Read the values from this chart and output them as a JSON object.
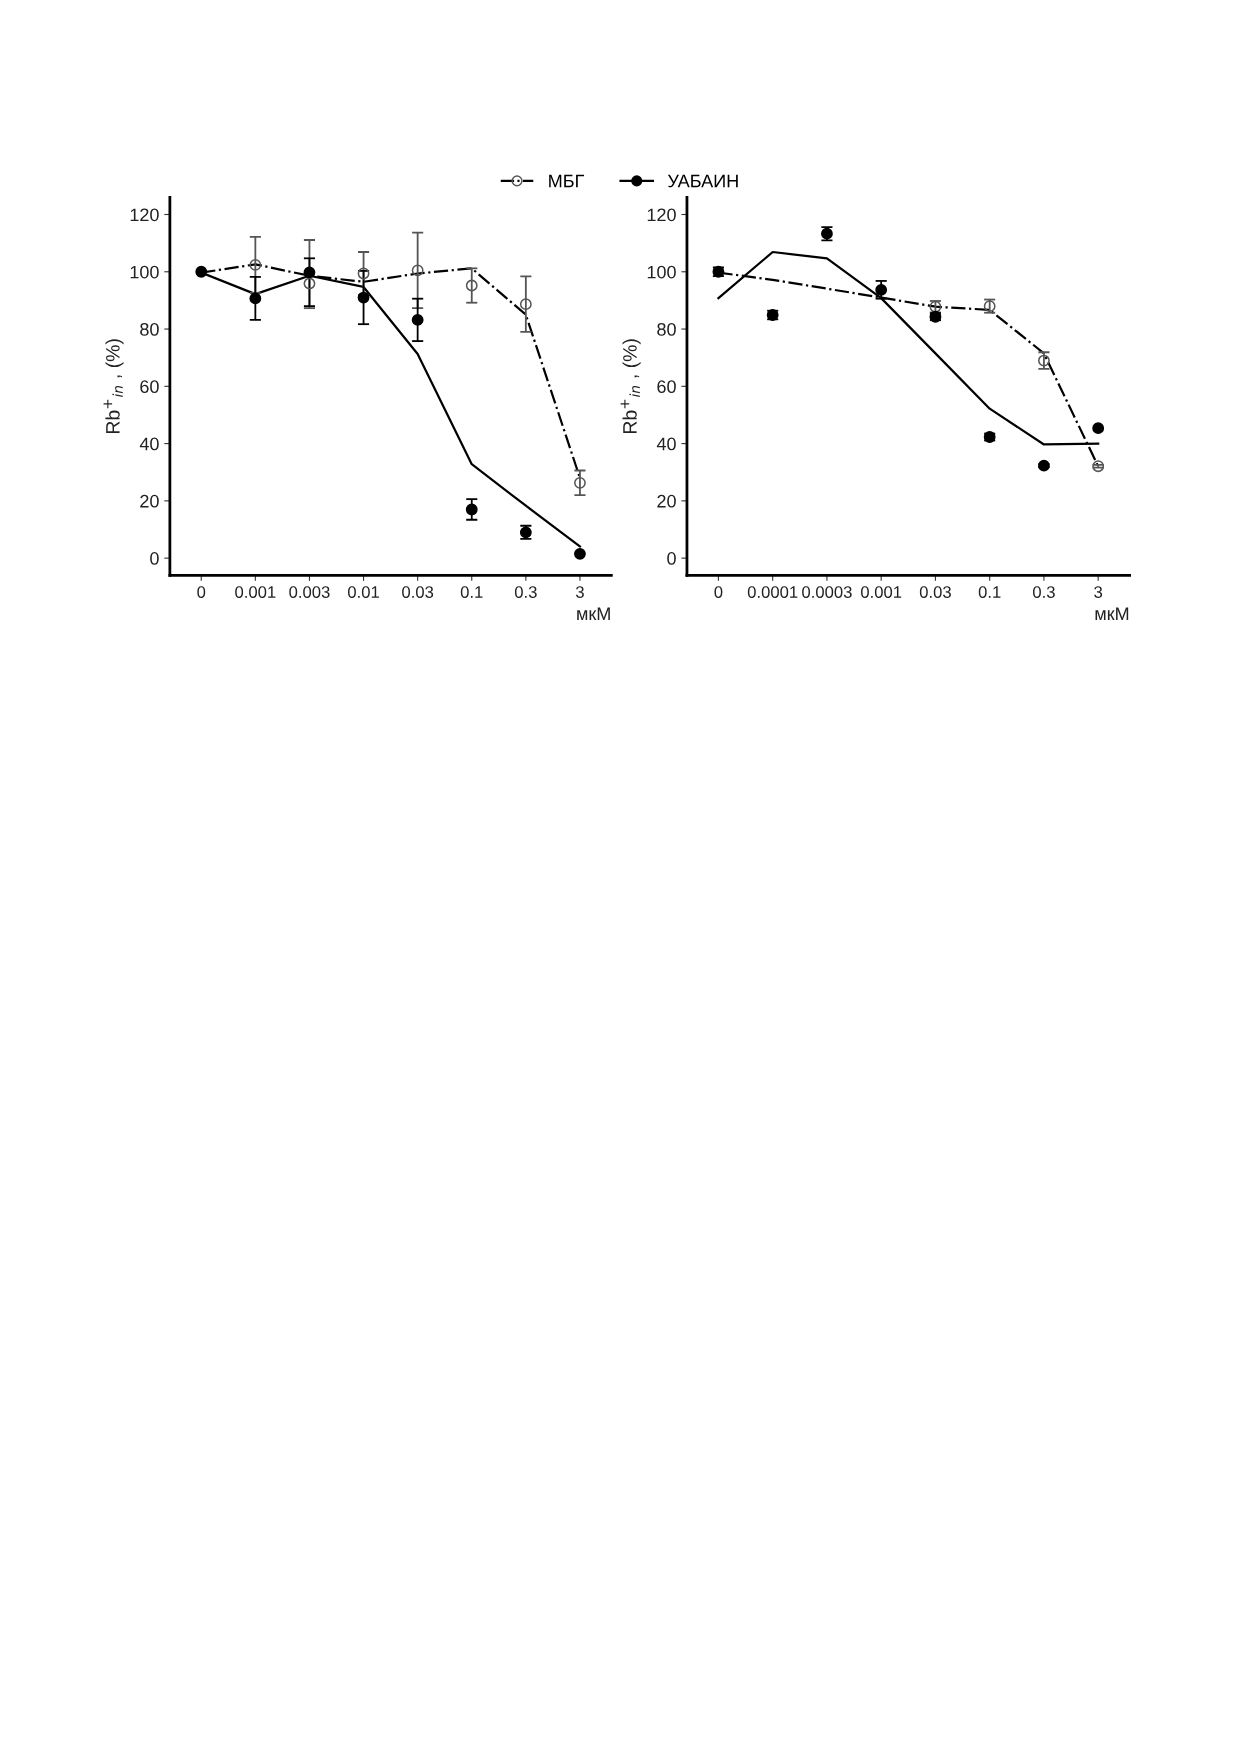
{
  "chart_data": [
    {
      "type": "scatter",
      "categories": [
        "0",
        "0.001",
        "0.003",
        "0.01",
        "0.03",
        "0.1",
        "0.3",
        "3"
      ],
      "xlabel": "мкМ",
      "ylabel": "Rb$^{+}$$_{in}$ , (%)",
      "ylim": [
        -6,
        126
      ],
      "yticks": [
        0,
        20,
        40,
        60,
        80,
        100,
        120
      ],
      "grid": false,
      "legend": "top",
      "series": [
        {
          "type": "line",
          "color": "#000000",
          "line_style": "dashdot",
          "values": [
            99.7,
            102.6,
            98.6,
            96.5,
            99.4,
            101.2,
            85.0,
            28.0
          ]
        },
        {
          "type": "line",
          "color": "#000000",
          "line_style": "solid",
          "values": [
            99.7,
            92.2,
            98.6,
            94.7,
            71.3,
            32.8,
            18.3,
            4.1
          ]
        },
        {
          "name": "МБГ",
          "color": "#555555",
          "marker": "circle-open",
          "values": [
            null,
            102.4,
            95.9,
            99.4,
            100.5,
            95.2,
            88.7,
            26.3
          ],
          "errors": [
            null,
            9.8,
            [
              87.3,
              111.1
            ],
            7.5,
            13.2,
            6,
            9.7,
            4.3
          ]
        },
        {
          "name": "УАБАИН",
          "color": "#000000",
          "marker": "circle",
          "values": [
            100,
            90.7,
            99.8,
            91.0,
            83.2,
            17.0,
            9.0,
            1.5
          ],
          "errors": [
            null,
            7.5,
            [
              88,
              104.7
            ],
            9.3,
            7.4,
            3.6,
            2.3,
            null
          ]
        }
      ]
    },
    {
      "type": "scatter",
      "categories": [
        "0",
        "0.0001",
        "0.0003",
        "0.001",
        "0.03",
        "0.1",
        "0.3",
        "3"
      ],
      "xlabel": "мкМ",
      "ylabel": "Rb$^{+}$$_{in}$ , (%)",
      "ylim": [
        -6,
        126
      ],
      "yticks": [
        0,
        20,
        40,
        60,
        80,
        100,
        120
      ],
      "grid": false,
      "legend": "top",
      "series": [
        {
          "type": "line",
          "color": "#000000",
          "line_style": "dashdot",
          "values": [
            99.7,
            97.2,
            94.1,
            91.0,
            87.8,
            86.7,
            71.5,
            32.1
          ]
        },
        {
          "type": "line",
          "color": "#000000",
          "line_style": "solid",
          "values": [
            90.8,
            106.9,
            104.7,
            90.8,
            71.5,
            52.2,
            39.7,
            40.0
          ]
        },
        {
          "name": "МБГ",
          "color": "#555555",
          "marker": "circle-open",
          "values": [
            null,
            null,
            null,
            null,
            87.8,
            88.0,
            69.0,
            32.1
          ],
          "errors": [
            null,
            null,
            null,
            null,
            2,
            2.3,
            2.9,
            0.5
          ]
        },
        {
          "name": "УАБАИН",
          "color": "#000000",
          "marker": "circle",
          "values": [
            100,
            84.9,
            113.3,
            93.7,
            84.3,
            42.3,
            32.3,
            45.4
          ],
          "errors": [
            1.5,
            1.5,
            2.3,
            3.1,
            1.2,
            1.2,
            0.5,
            null
          ]
        }
      ]
    }
  ]
}
